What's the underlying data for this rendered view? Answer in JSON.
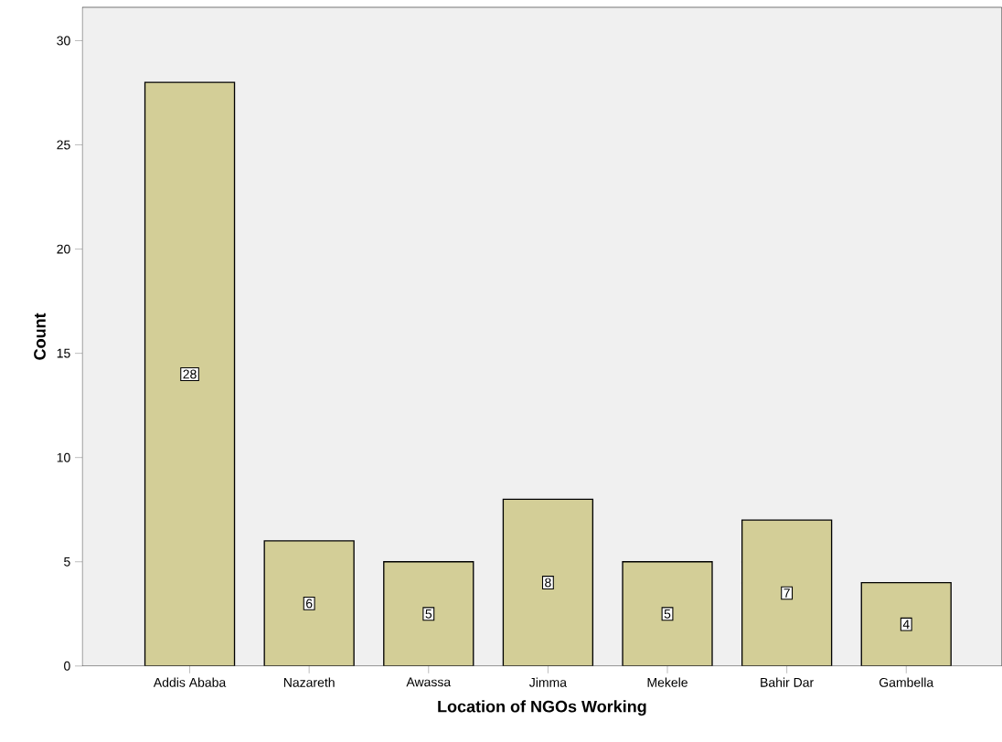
{
  "chart_data": {
    "type": "bar",
    "xlabel": "Location of NGOs Working",
    "ylabel": "Count",
    "categories": [
      "Addis Ababa",
      "Nazareth",
      "Awassa",
      "Jimma",
      "Mekele",
      "Bahir Dar",
      "Gambella"
    ],
    "values": [
      28,
      6,
      5,
      8,
      5,
      7,
      4
    ],
    "color": "#d3ce97",
    "ylim": [
      0,
      31.6
    ],
    "yticks": [
      0,
      5,
      10,
      15,
      20,
      25,
      30
    ],
    "data_labels": true,
    "grid": false
  }
}
